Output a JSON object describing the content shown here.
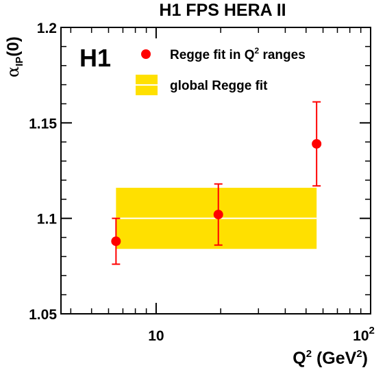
{
  "chart_data": {
    "type": "scatter",
    "title": "H1 FPS HERA II",
    "logo_text": "H1",
    "xlabel": {
      "base": "Q",
      "sup": "2",
      "mid": " (GeV",
      "sup2": "2",
      "end": ")"
    },
    "ylabel": {
      "alpha": "α",
      "sub": "IP",
      "rest": "(0)"
    },
    "xscale": "log",
    "xlim": [
      3.6,
      100
    ],
    "ylim": [
      1.05,
      1.2
    ],
    "yticks": [
      1.05,
      1.1,
      1.15,
      1.2
    ],
    "ytick_labels": [
      "1.05",
      "1.1",
      "1.15",
      "1.2"
    ],
    "xticks_major": [
      10,
      100
    ],
    "xtick_labels": [
      {
        "value": 10,
        "base": "10",
        "sup": ""
      },
      {
        "value": 100,
        "base": "10",
        "sup": "2"
      }
    ],
    "grid": false,
    "legend_placement": "top-right",
    "series": [
      {
        "name": "Regge fit in Q² ranges",
        "name_base": "Regge fit in Q",
        "name_sup": "2",
        "name_end": " ranges",
        "color": "#ff0000",
        "marker": "circle",
        "points": [
          {
            "x": 6.5,
            "y": 1.088,
            "ylo": 1.076,
            "yhi": 1.1
          },
          {
            "x": 19.5,
            "y": 1.102,
            "ylo": 1.086,
            "yhi": 1.118
          },
          {
            "x": 56,
            "y": 1.139,
            "ylo": 1.117,
            "yhi": 1.161
          }
        ]
      }
    ],
    "band": {
      "name": "global Regge fit",
      "color": "#ffe000",
      "line_color": "#ffffff",
      "x": [
        6.5,
        56
      ],
      "y": 1.1,
      "ylo": 1.084,
      "yhi": 1.116
    }
  }
}
